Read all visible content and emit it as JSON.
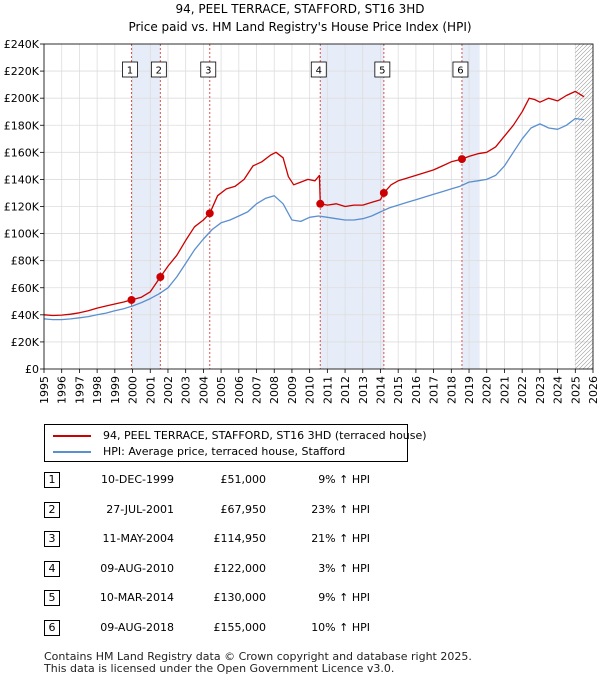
{
  "chart_data": {
    "type": "line",
    "title": "94, PEEL TERRACE, STAFFORD, ST16 3HD",
    "subtitle": "Price paid vs. HM Land Registry's House Price Index (HPI)",
    "xlim": [
      1995,
      2026
    ],
    "ylim": [
      0,
      240000
    ],
    "x_ticks": [
      "1995",
      "1996",
      "1997",
      "1998",
      "1999",
      "2000",
      "2001",
      "2002",
      "2003",
      "2004",
      "2005",
      "2006",
      "2007",
      "2008",
      "2009",
      "2010",
      "2011",
      "2012",
      "2013",
      "2014",
      "2015",
      "2016",
      "2017",
      "2018",
      "2019",
      "2020",
      "2021",
      "2022",
      "2023",
      "2024",
      "2025",
      "2026"
    ],
    "y_ticks": [
      {
        "value": 0,
        "label": "£0"
      },
      {
        "value": 20000,
        "label": "£20K"
      },
      {
        "value": 40000,
        "label": "£40K"
      },
      {
        "value": 60000,
        "label": "£60K"
      },
      {
        "value": 80000,
        "label": "£80K"
      },
      {
        "value": 100000,
        "label": "£100K"
      },
      {
        "value": 120000,
        "label": "£120K"
      },
      {
        "value": 140000,
        "label": "£140K"
      },
      {
        "value": 160000,
        "label": "£160K"
      },
      {
        "value": 180000,
        "label": "£180K"
      },
      {
        "value": 200000,
        "label": "£200K"
      },
      {
        "value": 220000,
        "label": "£220K"
      },
      {
        "value": 240000,
        "label": "£240K"
      }
    ],
    "shaded_ranges": [
      [
        1999.94,
        2001.57
      ],
      [
        2010.6,
        2014.19
      ],
      [
        2018.6,
        2019.6
      ]
    ],
    "future_hatch_from": 2025.0,
    "series": [
      {
        "name": "94, PEEL TERRACE, STAFFORD, ST16 3HD (terraced house)",
        "color": "#cc0000",
        "x": [
          1995.0,
          1995.5,
          1996.0,
          1996.5,
          1997.0,
          1997.5,
          1998.0,
          1998.5,
          1999.0,
          1999.5,
          1999.94,
          2000.5,
          2001.0,
          2001.57,
          2002.0,
          2002.5,
          2003.0,
          2003.5,
          2004.0,
          2004.36,
          2004.8,
          2005.3,
          2005.8,
          2006.3,
          2006.8,
          2007.3,
          2007.8,
          2008.1,
          2008.5,
          2008.8,
          2009.1,
          2009.5,
          2009.9,
          2010.3,
          2010.55,
          2010.6,
          2011.0,
          2011.5,
          2012.0,
          2012.5,
          2013.0,
          2013.5,
          2014.0,
          2014.19,
          2014.6,
          2015.0,
          2015.5,
          2016.0,
          2016.5,
          2017.0,
          2017.5,
          2018.0,
          2018.6,
          2019.0,
          2019.5,
          2020.0,
          2020.5,
          2021.0,
          2021.5,
          2022.0,
          2022.4,
          2022.7,
          2023.0,
          2023.5,
          2024.0,
          2024.5,
          2025.0,
          2025.5
        ],
        "y": [
          40000,
          39500,
          39800,
          40500,
          41500,
          43000,
          45000,
          46500,
          48000,
          49500,
          51000,
          53000,
          57000,
          67950,
          76000,
          84000,
          95000,
          105000,
          110000,
          114950,
          128000,
          133000,
          135000,
          140000,
          150000,
          153000,
          158000,
          160000,
          156000,
          142000,
          136000,
          138000,
          140000,
          139000,
          143000,
          122000,
          121000,
          122000,
          120000,
          121000,
          121000,
          123000,
          125000,
          130000,
          136000,
          139000,
          141000,
          143000,
          145000,
          147000,
          150000,
          153000,
          155000,
          157000,
          159000,
          160000,
          164000,
          172000,
          180000,
          190000,
          200000,
          199000,
          197000,
          200000,
          198000,
          202000,
          205000,
          201000
        ]
      },
      {
        "name": "HPI: Average price, terraced house, Stafford",
        "color": "#5b8fcf",
        "x": [
          1995.0,
          1995.5,
          1996.0,
          1996.5,
          1997.0,
          1997.5,
          1998.0,
          1998.5,
          1999.0,
          1999.5,
          2000.0,
          2000.5,
          2001.0,
          2001.5,
          2002.0,
          2002.5,
          2003.0,
          2003.5,
          2004.0,
          2004.5,
          2005.0,
          2005.5,
          2006.0,
          2006.5,
          2007.0,
          2007.5,
          2008.0,
          2008.5,
          2009.0,
          2009.5,
          2010.0,
          2010.5,
          2011.0,
          2011.5,
          2012.0,
          2012.5,
          2013.0,
          2013.5,
          2014.0,
          2014.5,
          2015.0,
          2015.5,
          2016.0,
          2016.5,
          2017.0,
          2017.5,
          2018.0,
          2018.5,
          2019.0,
          2019.5,
          2020.0,
          2020.5,
          2021.0,
          2021.5,
          2022.0,
          2022.5,
          2023.0,
          2023.5,
          2024.0,
          2024.5,
          2025.0,
          2025.5
        ],
        "y": [
          37000,
          36500,
          36500,
          37000,
          37800,
          38700,
          40000,
          41300,
          43000,
          44500,
          46500,
          49000,
          52000,
          55500,
          60000,
          68000,
          78000,
          88000,
          96000,
          103000,
          108000,
          110000,
          113000,
          116000,
          122000,
          126000,
          128000,
          122000,
          110000,
          109000,
          112000,
          113000,
          112000,
          111000,
          110000,
          110000,
          111000,
          113000,
          116000,
          119000,
          121000,
          123000,
          125000,
          127000,
          129000,
          131000,
          133000,
          135000,
          138000,
          139000,
          140000,
          143000,
          150000,
          160000,
          170000,
          178000,
          181000,
          178000,
          177000,
          180000,
          185000,
          184000
        ]
      }
    ],
    "transactions": [
      {
        "num": "1",
        "x": 1999.94,
        "price": 51000
      },
      {
        "num": "2",
        "x": 2001.57,
        "price": 67950
      },
      {
        "num": "3",
        "x": 2004.36,
        "price": 114950
      },
      {
        "num": "4",
        "x": 2010.6,
        "price": 122000
      },
      {
        "num": "5",
        "x": 2014.19,
        "price": 130000
      },
      {
        "num": "6",
        "x": 2018.6,
        "price": 155000
      }
    ]
  },
  "legend": {
    "property_label": "94, PEEL TERRACE, STAFFORD, ST16 3HD (terraced house)",
    "hpi_label": "HPI: Average price, terraced house, Stafford",
    "property_color": "#cc0000",
    "hpi_color": "#5b8fcf"
  },
  "table": [
    {
      "num": "1",
      "date": "10-DEC-1999",
      "price": "£51,000",
      "hpi": "9% ↑ HPI"
    },
    {
      "num": "2",
      "date": "27-JUL-2001",
      "price": "£67,950",
      "hpi": "23% ↑ HPI"
    },
    {
      "num": "3",
      "date": "11-MAY-2004",
      "price": "£114,950",
      "hpi": "21% ↑ HPI"
    },
    {
      "num": "4",
      "date": "09-AUG-2010",
      "price": "£122,000",
      "hpi": "3% ↑ HPI"
    },
    {
      "num": "5",
      "date": "10-MAR-2014",
      "price": "£130,000",
      "hpi": "9% ↑ HPI"
    },
    {
      "num": "6",
      "date": "09-AUG-2018",
      "price": "£155,000",
      "hpi": "10% ↑ HPI"
    }
  ],
  "footer": {
    "line1": "Contains HM Land Registry data © Crown copyright and database right 2025.",
    "line2": "This data is licensed under the Open Government Licence v3.0."
  }
}
